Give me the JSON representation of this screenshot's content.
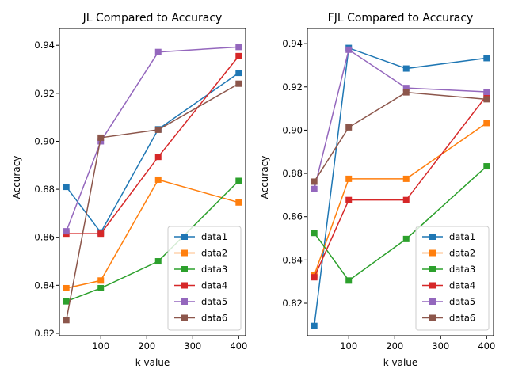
{
  "chart_data": [
    {
      "type": "line",
      "title": "JL Compared to Accuracy",
      "xlabel": "k value",
      "ylabel": "Accuracy",
      "xlim": [
        10,
        415
      ],
      "ylim": [
        0.819,
        0.947
      ],
      "xticks": [
        100,
        200,
        300,
        400
      ],
      "yticks": [
        0.82,
        0.84,
        0.86,
        0.88,
        0.9,
        0.92,
        0.94
      ],
      "ytick_labels": [
        "0.82",
        "0.84",
        "0.86",
        "0.88",
        "0.90",
        "0.92",
        "0.94"
      ],
      "x": [
        25,
        100,
        225,
        400
      ],
      "legend_position": "lower right",
      "series": [
        {
          "name": "data1",
          "color": "#1f77b4",
          "values": [
            0.881,
            0.862,
            0.905,
            0.9285
          ]
        },
        {
          "name": "data2",
          "color": "#ff7f0e",
          "values": [
            0.8388,
            0.842,
            0.884,
            0.8745
          ]
        },
        {
          "name": "data3",
          "color": "#2ca02c",
          "values": [
            0.8333,
            0.8388,
            0.85,
            0.8835
          ]
        },
        {
          "name": "data4",
          "color": "#d62728",
          "values": [
            0.8615,
            0.8615,
            0.8935,
            0.9355
          ]
        },
        {
          "name": "data5",
          "color": "#9467bd",
          "values": [
            0.8625,
            0.9,
            0.9372,
            0.9393
          ]
        },
        {
          "name": "data6",
          "color": "#8c564b",
          "values": [
            0.8255,
            0.9015,
            0.9048,
            0.924
          ]
        }
      ]
    },
    {
      "type": "line",
      "title": "FJL Compared to Accuracy",
      "xlabel": "k value",
      "ylabel": "Accuracy",
      "xlim": [
        10,
        415
      ],
      "ylim": [
        0.805,
        0.947
      ],
      "xticks": [
        100,
        200,
        300,
        400
      ],
      "yticks": [
        0.82,
        0.84,
        0.86,
        0.88,
        0.9,
        0.92,
        0.94
      ],
      "ytick_labels": [
        "0.82",
        "0.84",
        "0.86",
        "0.88",
        "0.90",
        "0.92",
        "0.94"
      ],
      "x": [
        25,
        100,
        225,
        400
      ],
      "legend_position": "lower right",
      "series": [
        {
          "name": "data1",
          "color": "#1f77b4",
          "values": [
            0.8095,
            0.938,
            0.9285,
            0.9333
          ]
        },
        {
          "name": "data2",
          "color": "#ff7f0e",
          "values": [
            0.833,
            0.8775,
            0.8775,
            0.9033
          ]
        },
        {
          "name": "data3",
          "color": "#2ca02c",
          "values": [
            0.8525,
            0.8305,
            0.8497,
            0.8833
          ]
        },
        {
          "name": "data4",
          "color": "#d62728",
          "values": [
            0.832,
            0.8677,
            0.8677,
            0.916
          ]
        },
        {
          "name": "data5",
          "color": "#9467bd",
          "values": [
            0.8728,
            0.9372,
            0.9195,
            0.9177
          ]
        },
        {
          "name": "data6",
          "color": "#8c564b",
          "values": [
            0.8762,
            0.9013,
            0.9175,
            0.9143
          ]
        }
      ]
    }
  ]
}
